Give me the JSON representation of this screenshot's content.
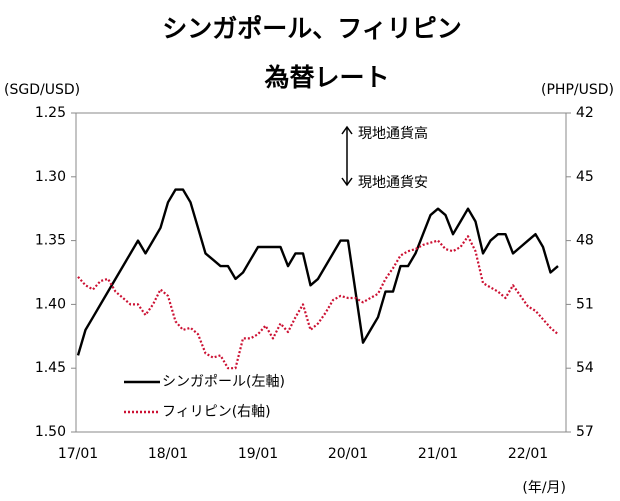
{
  "chart_data": {
    "type": "line",
    "title": "シンガポール、フィリピン",
    "subtitle": "為替レート",
    "y_label": "(SGD/USD)",
    "y2_label": "(PHP/USD)",
    "x_label": "(年/月)",
    "annotations": [
      "現地通貨高",
      "現地通貨安"
    ],
    "categories": [
      "17/01",
      null,
      null,
      null,
      null,
      null,
      null,
      null,
      null,
      null,
      null,
      null,
      "18/01",
      null,
      null,
      null,
      null,
      null,
      null,
      null,
      null,
      null,
      null,
      null,
      "19/01",
      null,
      null,
      null,
      null,
      null,
      null,
      null,
      null,
      null,
      null,
      null,
      "20/01",
      null,
      null,
      null,
      null,
      null,
      null,
      null,
      null,
      null,
      null,
      null,
      "21/01",
      null,
      null,
      null,
      null,
      null,
      null,
      null,
      null,
      null,
      null,
      null,
      "22/01",
      null,
      null,
      null,
      null
    ],
    "ylim": [
      1.5,
      1.25
    ],
    "yticks": [
      {
        "value": 1.5,
        "label": "1.50"
      },
      1.45,
      {
        "value": 1.4,
        "label": "1.40"
      },
      1.35,
      {
        "value": 1.3,
        "label": "1.30"
      },
      1.25
    ],
    "y2lim": [
      57,
      42
    ],
    "y2ticks": [
      57,
      54,
      51,
      48,
      45,
      42
    ],
    "series": [
      {
        "name": "シンガポール(左軸)",
        "color": "#000000",
        "style": "solid",
        "values": [
          1.44,
          1.42,
          1.41,
          1.4,
          1.39,
          1.38,
          1.37,
          1.36,
          1.35,
          1.36,
          1.35,
          1.34,
          1.32,
          1.31,
          1.31,
          1.32,
          1.34,
          1.36,
          1.365,
          1.37,
          1.37,
          1.38,
          1.375,
          1.365,
          1.355,
          1.355,
          1.355,
          1.355,
          1.37,
          1.36,
          1.36,
          1.385,
          1.38,
          1.37,
          1.36,
          1.35,
          1.35,
          1.39,
          1.43,
          1.42,
          1.41,
          1.39,
          1.39,
          1.37,
          1.37,
          1.36,
          1.345,
          1.33,
          1.325,
          1.33,
          1.345,
          1.335,
          1.325,
          1.335,
          1.36,
          1.35,
          1.345,
          1.345,
          1.36,
          1.355,
          1.35,
          1.345,
          1.355,
          1.375,
          1.37
        ]
      },
      {
        "name": "フィリピン(右軸)",
        "color": "#cc1133",
        "style": "dotted",
        "axis": "y2",
        "values": [
          49.7,
          50.1,
          50.3,
          49.9,
          49.8,
          50.4,
          50.7,
          51.0,
          51.0,
          51.5,
          51.0,
          50.3,
          50.6,
          51.8,
          52.2,
          52.1,
          52.4,
          53.3,
          53.5,
          53.4,
          54.0,
          54.0,
          52.6,
          52.6,
          52.4,
          52.0,
          52.6,
          51.9,
          52.3,
          51.6,
          51.0,
          52.2,
          51.9,
          51.4,
          50.8,
          50.6,
          50.7,
          50.7,
          50.9,
          50.7,
          50.5,
          49.8,
          49.3,
          48.7,
          48.5,
          48.4,
          48.2,
          48.1,
          48.0,
          48.4,
          48.5,
          48.3,
          47.8,
          48.5,
          50.0,
          50.2,
          50.4,
          50.7,
          50.1,
          50.6,
          51.1,
          51.3,
          51.7,
          52.1,
          52.4
        ]
      }
    ]
  }
}
